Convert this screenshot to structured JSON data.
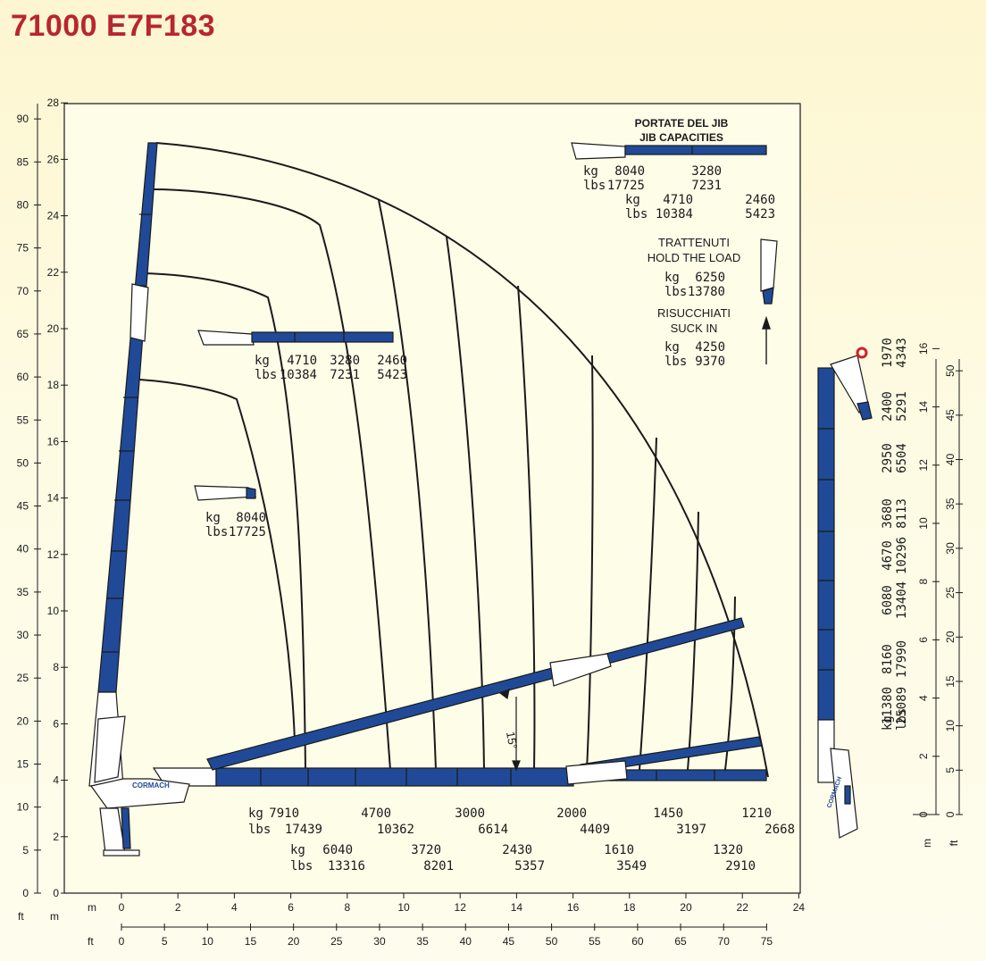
{
  "title": "71000 E7F183",
  "colors": {
    "title": "#b8262f",
    "boom_blue": "#204a98",
    "boom_outline": "#1a1a1a",
    "background": "#fdf6d0",
    "plot_bg": "#fefde8",
    "hook": "#d0202a"
  },
  "axes": {
    "x_m_unit": "m",
    "x_ft_unit": "ft",
    "y_m_unit": "m",
    "y_ft_unit": "ft",
    "x_m_ticks": [
      "0",
      "2",
      "4",
      "6",
      "8",
      "10",
      "12",
      "14",
      "16",
      "18",
      "20",
      "22",
      "24"
    ],
    "x_ft_ticks": [
      "0",
      "5",
      "10",
      "15",
      "20",
      "25",
      "30",
      "35",
      "40",
      "45",
      "50",
      "55",
      "60",
      "65",
      "70",
      "75"
    ],
    "y_m_ticks": [
      "28",
      "26",
      "24",
      "22",
      "20",
      "18",
      "16",
      "14",
      "12",
      "10",
      "8",
      "6",
      "4",
      "2",
      "0"
    ],
    "y_ft_ticks": [
      "90",
      "85",
      "80",
      "75",
      "70",
      "65",
      "60",
      "55",
      "50",
      "45",
      "40",
      "35",
      "30",
      "25",
      "20",
      "15",
      "10",
      "5",
      "0"
    ]
  },
  "loads_row1": [
    {
      "kg": "7910",
      "lbs": "17439"
    },
    {
      "kg": "4700",
      "lbs": "10362"
    },
    {
      "kg": "3000",
      "lbs": "6614"
    },
    {
      "kg": "2000",
      "lbs": "4409"
    },
    {
      "kg": "1450",
      "lbs": "3197"
    },
    {
      "kg": "1210",
      "lbs": "2668"
    }
  ],
  "loads_row2": [
    {
      "kg": "6040",
      "lbs": "13316"
    },
    {
      "kg": "3720",
      "lbs": "8201"
    },
    {
      "kg": "2430",
      "lbs": "5357"
    },
    {
      "kg": "1610",
      "lbs": "3549"
    },
    {
      "kg": "1320",
      "lbs": "2910"
    }
  ],
  "unit_kg": "kg",
  "unit_lbs": "lbs",
  "angle_label": "15°",
  "inner_jib": {
    "kg": [
      "4710",
      "3280",
      "2460"
    ],
    "lbs": [
      "10384",
      "7231",
      "5423"
    ]
  },
  "inner_short": {
    "kg": "8040",
    "lbs": "17725"
  },
  "jib_caps": {
    "title_it": "PORTATE DEL JIB",
    "title_en": "JIB CAPACITIES",
    "row1_kg": [
      "8040",
      "3280"
    ],
    "row1_lbs": [
      "17725",
      "7231"
    ],
    "row2_kg": [
      "4710",
      "2460"
    ],
    "row2_lbs": [
      "10384",
      "5423"
    ]
  },
  "hold": {
    "it": "TRATTENUTI",
    "en": "HOLD THE LOAD",
    "kg": "6250",
    "lbs": "13780"
  },
  "suck": {
    "it": "RISUCCHIATI",
    "en": "SUCK IN",
    "kg": "4250",
    "lbs": "9370"
  },
  "right_panel": {
    "m_ticks": [
      "0",
      "2",
      "4",
      "6",
      "8",
      "10",
      "12",
      "14",
      "16"
    ],
    "ft_ticks": [
      "0",
      "5",
      "10",
      "15",
      "20",
      "25",
      "30",
      "35",
      "40",
      "45",
      "50"
    ],
    "m_unit": "m",
    "ft_unit": "ft",
    "loads": [
      {
        "kg": "1970",
        "lbs": "4343"
      },
      {
        "kg": "2400",
        "lbs": "5291"
      },
      {
        "kg": "2950",
        "lbs": "6504"
      },
      {
        "kg": "3680",
        "lbs": "8113"
      },
      {
        "kg": "4670",
        "lbs": "10296"
      },
      {
        "kg": "6080",
        "lbs": "13404"
      },
      {
        "kg": "8160",
        "lbs": "17990"
      },
      {
        "kg": "11380",
        "lbs": "25089"
      }
    ],
    "unit_kg": "kg",
    "unit_lbs": "lbs"
  },
  "logo": "CORMACH"
}
